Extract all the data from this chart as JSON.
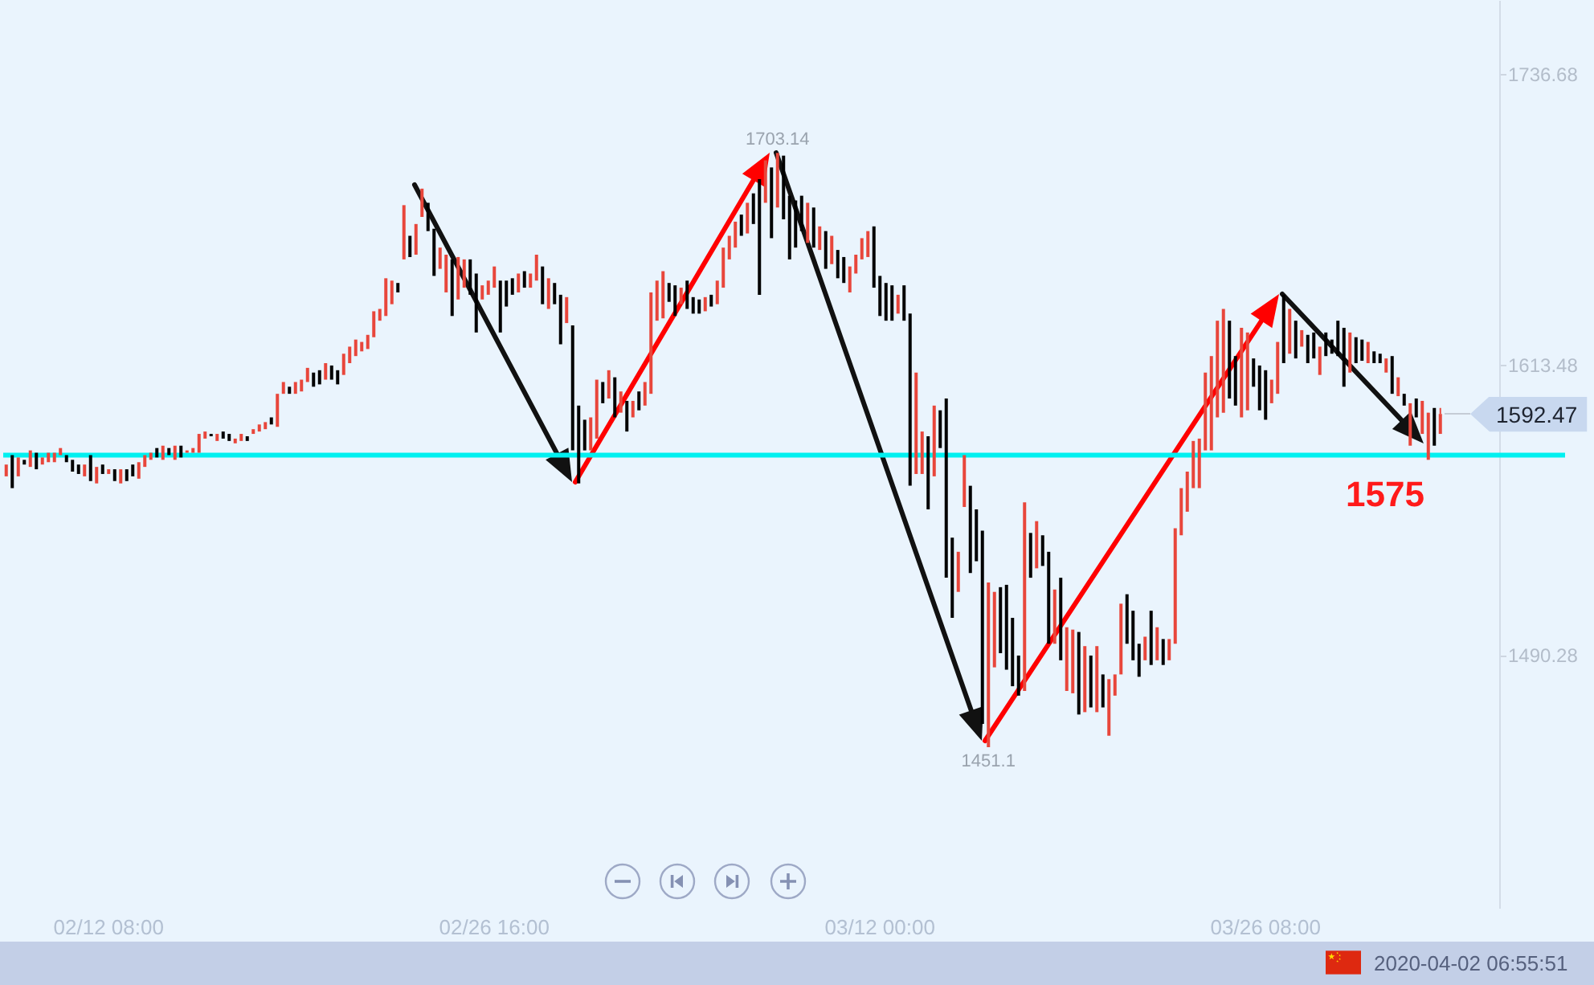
{
  "chart_data": {
    "type": "candlestick",
    "categories": [
      null,
      null,
      null,
      null,
      null,
      null,
      null,
      null,
      null,
      null,
      null,
      null,
      null,
      null,
      null,
      null,
      null,
      "02/12 08:00",
      null,
      null,
      null,
      null,
      null,
      null,
      null,
      null,
      null,
      null,
      null,
      null,
      null,
      null,
      null,
      null,
      null,
      null,
      null,
      null,
      null,
      null,
      null,
      null,
      null,
      null,
      null,
      null,
      null,
      null,
      null,
      null,
      null,
      null,
      null,
      null,
      null,
      null,
      null,
      null,
      null,
      null,
      null,
      null,
      null,
      null,
      null,
      null,
      null,
      null,
      null,
      null,
      null,
      null,
      null,
      null,
      null,
      null,
      null,
      null,
      null,
      null,
      null,
      "02/26 16:00",
      null,
      null,
      null,
      null,
      null,
      null,
      null,
      null,
      null,
      null,
      null,
      null,
      null,
      null,
      null,
      null,
      null,
      null,
      null,
      null,
      null,
      null,
      null,
      null,
      null,
      null,
      null,
      null,
      null,
      null,
      null,
      null,
      null,
      null,
      null,
      null,
      null,
      null,
      null,
      null,
      null,
      null,
      null,
      null,
      null,
      null,
      null,
      null,
      null,
      null,
      null,
      null,
      null,
      null,
      null,
      null,
      null,
      null,
      null,
      null,
      null,
      null,
      null,
      "03/12 00:00",
      null,
      null,
      null,
      null,
      null,
      null,
      null,
      null,
      null,
      null,
      null,
      null,
      null,
      null,
      null,
      null,
      null,
      null,
      null,
      null,
      null,
      null,
      null,
      null,
      null,
      null,
      null,
      null,
      null,
      null,
      null,
      null,
      null,
      null,
      null,
      null,
      null,
      null,
      null,
      null,
      null,
      null,
      null,
      null,
      null,
      null,
      null,
      null,
      null,
      null,
      null,
      null,
      null,
      null,
      null,
      null,
      null,
      null,
      null,
      null,
      null,
      null,
      null,
      "03/26 08:00",
      null,
      null,
      null,
      null,
      null,
      null,
      null,
      null,
      null,
      null,
      null,
      null,
      null,
      null,
      null,
      null,
      null,
      null,
      null,
      null,
      null,
      null,
      null,
      null,
      null,
      null,
      null,
      null,
      null
    ],
    "ohlc": [
      [
        1566,
        1571,
        1566,
        1571
      ],
      [
        1575,
        1575,
        1561,
        1561
      ],
      [
        1566,
        1574,
        1566,
        1574
      ],
      [
        1573,
        1573,
        1571,
        1571
      ],
      [
        1570,
        1577,
        1570,
        1577
      ],
      [
        1576,
        1576,
        1569,
        1569
      ],
      [
        1571,
        1574,
        1571,
        1574
      ],
      [
        1572,
        1576,
        1572,
        1576
      ],
      [
        1572,
        1576,
        1572,
        1576
      ],
      [
        1575,
        1578,
        1575,
        1578
      ],
      [
        1575,
        1575,
        1572,
        1572
      ],
      [
        1573,
        1573,
        1568,
        1568
      ],
      [
        1571,
        1571,
        1567,
        1567
      ],
      [
        1566,
        1571,
        1566,
        1571
      ],
      [
        1575,
        1575,
        1564,
        1564
      ],
      [
        1563,
        1570,
        1563,
        1570
      ],
      [
        1571,
        1571,
        1567,
        1567
      ],
      [
        1567,
        1569,
        1567,
        1569
      ],
      [
        1569,
        1569,
        1564,
        1564
      ],
      [
        1563,
        1569,
        1563,
        1569
      ],
      [
        1569,
        1569,
        1564,
        1564
      ],
      [
        1571,
        1571,
        1566,
        1566
      ],
      [
        1565,
        1572,
        1565,
        1572
      ],
      [
        1570,
        1575,
        1570,
        1575
      ],
      [
        1573,
        1576,
        1573,
        1576
      ],
      [
        1578,
        1578,
        1574,
        1574
      ],
      [
        1573,
        1579,
        1573,
        1579
      ],
      [
        1578,
        1578,
        1575,
        1575
      ],
      [
        1573,
        1579,
        1573,
        1579
      ],
      [
        1579,
        1579,
        1574,
        1574
      ],
      [
        1576,
        1577,
        1576,
        1577
      ],
      [
        1576,
        1578,
        1576,
        1578
      ],
      [
        1576,
        1584,
        1576,
        1584
      ],
      [
        1582,
        1585,
        1582,
        1585
      ],
      [
        1584,
        1584,
        1583,
        1583
      ],
      [
        1581,
        1584,
        1581,
        1584
      ],
      [
        1585,
        1585,
        1582,
        1582
      ],
      [
        1584,
        1584,
        1581,
        1581
      ],
      [
        1580,
        1582,
        1580,
        1582
      ],
      [
        1581,
        1584,
        1581,
        1584
      ],
      [
        1583,
        1583,
        1581,
        1581
      ],
      [
        1584,
        1586,
        1584,
        1586
      ],
      [
        1585,
        1588,
        1585,
        1588
      ],
      [
        1586,
        1589,
        1586,
        1589
      ],
      [
        1591,
        1591,
        1588,
        1588
      ],
      [
        1587,
        1601,
        1587,
        1601
      ],
      [
        1601,
        1606,
        1601,
        1606
      ],
      [
        1604,
        1604,
        1601,
        1601
      ],
      [
        1601,
        1606,
        1601,
        1606
      ],
      [
        1602,
        1607,
        1602,
        1607
      ],
      [
        1606,
        1612,
        1606,
        1612
      ],
      [
        1610,
        1610,
        1604,
        1604
      ],
      [
        1611,
        1611,
        1605,
        1605
      ],
      [
        1607,
        1614,
        1607,
        1614
      ],
      [
        1613,
        1613,
        1607,
        1607
      ],
      [
        1611,
        1611,
        1605,
        1605
      ],
      [
        1609,
        1618,
        1609,
        1618
      ],
      [
        1614,
        1621,
        1614,
        1621
      ],
      [
        1617,
        1624,
        1617,
        1624
      ],
      [
        1619,
        1623,
        1619,
        1623
      ],
      [
        1620,
        1626,
        1620,
        1626
      ],
      [
        1625,
        1636,
        1625,
        1636
      ],
      [
        1632,
        1637,
        1632,
        1637
      ],
      [
        1634,
        1650,
        1634,
        1650
      ],
      [
        1639,
        1649,
        1639,
        1649
      ],
      [
        1648,
        1648,
        1644,
        1644
      ],
      [
        1658,
        1681,
        1658,
        1681
      ],
      [
        1668,
        1668,
        1659,
        1659
      ],
      [
        1660,
        1673,
        1660,
        1673
      ],
      [
        1676,
        1688,
        1676,
        1688
      ],
      [
        1682,
        1682,
        1670,
        1670
      ],
      [
        1671,
        1671,
        1651,
        1651
      ],
      [
        1654,
        1663,
        1654,
        1663
      ],
      [
        1644,
        1660,
        1644,
        1660
      ],
      [
        1658,
        1658,
        1634,
        1634
      ],
      [
        1641,
        1659,
        1641,
        1659
      ],
      [
        1646,
        1658,
        1646,
        1658
      ],
      [
        1658,
        1658,
        1643,
        1643
      ],
      [
        1652,
        1652,
        1627,
        1627
      ],
      [
        1641,
        1647,
        1641,
        1647
      ],
      [
        1643,
        1649,
        1643,
        1649
      ],
      [
        1646,
        1655,
        1646,
        1655
      ],
      [
        1649,
        1649,
        1627,
        1627
      ],
      [
        1649,
        1649,
        1638,
        1638
      ],
      [
        1650,
        1650,
        1643,
        1643
      ],
      [
        1644,
        1652,
        1644,
        1652
      ],
      [
        1653,
        1653,
        1646,
        1646
      ],
      [
        1646,
        1652,
        1646,
        1652
      ],
      [
        1649,
        1660,
        1649,
        1660
      ],
      [
        1655,
        1655,
        1639,
        1639
      ],
      [
        1637,
        1650,
        1637,
        1650
      ],
      [
        1648,
        1648,
        1639,
        1639
      ],
      [
        1643,
        1643,
        1622,
        1622
      ],
      [
        1631,
        1642,
        1631,
        1642
      ],
      [
        1630,
        1630,
        1577,
        1577
      ],
      [
        1596,
        1596,
        1563,
        1563
      ],
      [
        1590,
        1590,
        1577,
        1577
      ],
      [
        1577,
        1591,
        1577,
        1591
      ],
      [
        1582,
        1607,
        1582,
        1607
      ],
      [
        1606,
        1606,
        1597,
        1597
      ],
      [
        1599,
        1611,
        1599,
        1611
      ],
      [
        1608,
        1608,
        1591,
        1591
      ],
      [
        1593,
        1602,
        1593,
        1602
      ],
      [
        1598,
        1598,
        1585,
        1585
      ],
      [
        1591,
        1598,
        1591,
        1598
      ],
      [
        1602,
        1602,
        1594,
        1594
      ],
      [
        1596,
        1606,
        1596,
        1606
      ],
      [
        1601,
        1644,
        1601,
        1644
      ],
      [
        1632,
        1649,
        1632,
        1649
      ],
      [
        1633,
        1653,
        1633,
        1653
      ],
      [
        1648,
        1648,
        1640,
        1640
      ],
      [
        1647,
        1647,
        1634,
        1634
      ],
      [
        1639,
        1646,
        1639,
        1646
      ],
      [
        1649,
        1649,
        1637,
        1637
      ],
      [
        1642,
        1642,
        1635,
        1635
      ],
      [
        1641,
        1641,
        1635,
        1635
      ],
      [
        1636,
        1642,
        1636,
        1642
      ],
      [
        1643,
        1643,
        1638,
        1638
      ],
      [
        1639,
        1649,
        1639,
        1649
      ],
      [
        1646,
        1663,
        1646,
        1663
      ],
      [
        1658,
        1668,
        1658,
        1668
      ],
      [
        1663,
        1674,
        1663,
        1674
      ],
      [
        1677,
        1677,
        1668,
        1668
      ],
      [
        1669,
        1682,
        1669,
        1682
      ],
      [
        1686,
        1686,
        1673,
        1673
      ],
      [
        1692,
        1692,
        1643,
        1643
      ],
      [
        1682,
        1700,
        1682,
        1700
      ],
      [
        1697,
        1697,
        1667,
        1667
      ],
      [
        1680,
        1703.14,
        1680,
        1703.14
      ],
      [
        1702,
        1702,
        1675,
        1675
      ],
      [
        1685,
        1685,
        1658,
        1658
      ],
      [
        1683,
        1683,
        1663,
        1663
      ],
      [
        1685,
        1685,
        1670,
        1670
      ],
      [
        1665,
        1682,
        1665,
        1682
      ],
      [
        1680,
        1680,
        1663,
        1663
      ],
      [
        1662,
        1672,
        1662,
        1672
      ],
      [
        1670,
        1670,
        1654,
        1654
      ],
      [
        1656,
        1668,
        1656,
        1668
      ],
      [
        1662,
        1662,
        1650,
        1650
      ],
      [
        1659,
        1659,
        1648,
        1648
      ],
      [
        1644,
        1655,
        1644,
        1655
      ],
      [
        1652,
        1660,
        1652,
        1660
      ],
      [
        1658,
        1667,
        1658,
        1667
      ],
      [
        1659,
        1670,
        1659,
        1670
      ],
      [
        1672,
        1672,
        1646,
        1646
      ],
      [
        1651,
        1651,
        1634,
        1634
      ],
      [
        1648,
        1648,
        1632,
        1632
      ],
      [
        1647,
        1647,
        1632,
        1632
      ],
      [
        1635,
        1643,
        1635,
        1643
      ],
      [
        1647,
        1647,
        1632,
        1632
      ],
      [
        1635,
        1635,
        1562,
        1562
      ],
      [
        1567,
        1610,
        1567,
        1610
      ],
      [
        1567,
        1585,
        1567,
        1585
      ],
      [
        1583,
        1583,
        1552,
        1552
      ],
      [
        1566,
        1596,
        1566,
        1596
      ],
      [
        1594,
        1594,
        1578,
        1578
      ],
      [
        1599,
        1599,
        1523,
        1523
      ],
      [
        1540,
        1540,
        1506,
        1506
      ],
      [
        1517,
        1534,
        1517,
        1534
      ],
      [
        1553,
        1575,
        1553,
        1575
      ],
      [
        1562,
        1562,
        1525,
        1525
      ],
      [
        1552,
        1552,
        1530,
        1530
      ],
      [
        1543,
        1543,
        1461,
        1461
      ],
      [
        1451.1,
        1521,
        1451.1,
        1521
      ],
      [
        1485,
        1517,
        1485,
        1517
      ],
      [
        1519,
        1519,
        1491,
        1491
      ],
      [
        1520,
        1520,
        1484,
        1484
      ],
      [
        1506,
        1506,
        1477,
        1477
      ],
      [
        1490,
        1490,
        1473,
        1473
      ],
      [
        1475,
        1555,
        1475,
        1555
      ],
      [
        1542,
        1542,
        1523,
        1523
      ],
      [
        1527,
        1547,
        1527,
        1547
      ],
      [
        1541,
        1541,
        1528,
        1528
      ],
      [
        1534,
        1534,
        1495,
        1495
      ],
      [
        1495,
        1518,
        1495,
        1518
      ],
      [
        1523,
        1523,
        1488,
        1488
      ],
      [
        1475,
        1502,
        1475,
        1502
      ],
      [
        1474,
        1501,
        1474,
        1501
      ],
      [
        1500,
        1500,
        1465,
        1465
      ],
      [
        1466,
        1494,
        1466,
        1494
      ],
      [
        1490,
        1490,
        1468,
        1468
      ],
      [
        1466,
        1494,
        1466,
        1494
      ],
      [
        1482,
        1482,
        1468,
        1468
      ],
      [
        1456,
        1480,
        1456,
        1480
      ],
      [
        1473,
        1482,
        1473,
        1482
      ],
      [
        1482,
        1512,
        1482,
        1512
      ],
      [
        1516,
        1516,
        1495,
        1495
      ],
      [
        1509,
        1509,
        1488,
        1488
      ],
      [
        1495,
        1495,
        1481,
        1481
      ],
      [
        1488,
        1498,
        1488,
        1498
      ],
      [
        1509,
        1509,
        1486,
        1486
      ],
      [
        1488,
        1502,
        1488,
        1502
      ],
      [
        1497,
        1497,
        1486,
        1486
      ],
      [
        1488,
        1497,
        1488,
        1497
      ],
      [
        1495,
        1544,
        1495,
        1544
      ],
      [
        1541,
        1561,
        1541,
        1561
      ],
      [
        1551,
        1568,
        1551,
        1568
      ],
      [
        1561,
        1581,
        1561,
        1581
      ],
      [
        1561,
        1582,
        1561,
        1582
      ],
      [
        1577,
        1610,
        1577,
        1610
      ],
      [
        1577,
        1617,
        1577,
        1617
      ],
      [
        1591,
        1632,
        1591,
        1632
      ],
      [
        1593,
        1637,
        1593,
        1637
      ],
      [
        1632,
        1632,
        1599,
        1599
      ],
      [
        1617,
        1617,
        1596,
        1596
      ],
      [
        1591,
        1629,
        1591,
        1629
      ],
      [
        1594,
        1627,
        1594,
        1627
      ],
      [
        1616,
        1616,
        1604,
        1604
      ],
      [
        1613,
        1613,
        1594,
        1594
      ],
      [
        1611,
        1611,
        1590,
        1590
      ],
      [
        1597,
        1607,
        1597,
        1607
      ],
      [
        1601,
        1623,
        1601,
        1623
      ],
      [
        1643,
        1643,
        1614,
        1614
      ],
      [
        1618,
        1637,
        1618,
        1637
      ],
      [
        1632,
        1632,
        1616,
        1616
      ],
      [
        1621,
        1628,
        1621,
        1628
      ],
      [
        1626,
        1626,
        1614,
        1614
      ],
      [
        1627,
        1627,
        1616,
        1616
      ],
      [
        1609,
        1621,
        1609,
        1621
      ],
      [
        1627,
        1627,
        1617,
        1617
      ],
      [
        1624,
        1624,
        1618,
        1618
      ],
      [
        1632,
        1632,
        1617,
        1617
      ],
      [
        1629,
        1629,
        1604,
        1604
      ],
      [
        1610,
        1627,
        1610,
        1627
      ],
      [
        1625,
        1625,
        1614,
        1614
      ],
      [
        1624,
        1624,
        1615,
        1615
      ],
      [
        1614,
        1623,
        1614,
        1623
      ],
      [
        1619,
        1619,
        1614,
        1614
      ],
      [
        1618,
        1618,
        1614,
        1614
      ],
      [
        1610,
        1616,
        1610,
        1616
      ],
      [
        1617,
        1617,
        1601,
        1601
      ],
      [
        1600,
        1608,
        1600,
        1608
      ],
      [
        1601,
        1601,
        1596,
        1596
      ],
      [
        1579,
        1597,
        1579,
        1597
      ],
      [
        1599,
        1599,
        1591,
        1591
      ],
      [
        1584,
        1598,
        1584,
        1598
      ],
      [
        1573,
        1593,
        1573,
        1593
      ],
      [
        1595,
        1595,
        1579,
        1579
      ],
      [
        1584,
        1595,
        1584,
        1592.47
      ]
    ],
    "colors": [
      "#e8463b",
      "#000000",
      "#e8463b",
      "#000000",
      "#e8463b",
      "#000000",
      "#e8463b",
      "#e8463b",
      "#e8463b",
      "#e8463b",
      "#000000",
      "#000000",
      "#000000",
      "#e8463b",
      "#000000",
      "#e8463b",
      "#000000",
      "#e8463b",
      "#000000",
      "#e8463b",
      "#000000",
      "#000000",
      "#e8463b",
      "#e8463b",
      "#e8463b",
      "#000000",
      "#e8463b",
      "#000000",
      "#e8463b",
      "#000000",
      "#e8463b",
      "#e8463b",
      "#e8463b",
      "#e8463b",
      "#000000",
      "#e8463b",
      "#000000",
      "#000000",
      "#e8463b",
      "#e8463b",
      "#000000",
      "#e8463b",
      "#e8463b",
      "#e8463b",
      "#000000",
      "#e8463b",
      "#e8463b",
      "#000000",
      "#e8463b",
      "#e8463b",
      "#e8463b",
      "#000000",
      "#000000",
      "#e8463b",
      "#000000",
      "#000000",
      "#e8463b",
      "#e8463b",
      "#e8463b",
      "#e8463b",
      "#e8463b",
      "#e8463b",
      "#e8463b",
      "#e8463b",
      "#e8463b",
      "#000000",
      "#e8463b",
      "#000000",
      "#e8463b",
      "#e8463b",
      "#000000",
      "#000000",
      "#e8463b",
      "#e8463b",
      "#000000",
      "#e8463b",
      "#e8463b",
      "#000000",
      "#000000",
      "#e8463b",
      "#e8463b",
      "#e8463b",
      "#000000",
      "#000000",
      "#000000",
      "#e8463b",
      "#000000",
      "#e8463b",
      "#e8463b",
      "#000000",
      "#e8463b",
      "#000000",
      "#000000",
      "#e8463b",
      "#000000",
      "#000000",
      "#000000",
      "#e8463b",
      "#e8463b",
      "#000000",
      "#e8463b",
      "#000000",
      "#e8463b",
      "#000000",
      "#e8463b",
      "#000000",
      "#e8463b",
      "#e8463b",
      "#e8463b",
      "#e8463b",
      "#000000",
      "#000000",
      "#e8463b",
      "#000000",
      "#000000",
      "#000000",
      "#e8463b",
      "#000000",
      "#e8463b",
      "#e8463b",
      "#e8463b",
      "#e8463b",
      "#000000",
      "#e8463b",
      "#000000",
      "#000000",
      "#e8463b",
      "#000000",
      "#e8463b",
      "#000000",
      "#000000",
      "#000000",
      "#000000",
      "#e8463b",
      "#000000",
      "#e8463b",
      "#000000",
      "#e8463b",
      "#000000",
      "#000000",
      "#e8463b",
      "#e8463b",
      "#e8463b",
      "#e8463b",
      "#000000",
      "#000000",
      "#000000",
      "#000000",
      "#e8463b",
      "#000000",
      "#000000",
      "#e8463b",
      "#e8463b",
      "#000000",
      "#e8463b",
      "#000000",
      "#000000",
      "#000000",
      "#e8463b",
      "#e8463b",
      "#000000",
      "#000000",
      "#000000",
      "#e8463b",
      "#e8463b",
      "#000000",
      "#000000",
      "#000000",
      "#000000",
      "#e8463b",
      "#000000",
      "#e8463b",
      "#000000",
      "#000000",
      "#e8463b",
      "#000000",
      "#e8463b",
      "#e8463b",
      "#000000",
      "#e8463b",
      "#000000",
      "#e8463b",
      "#000000",
      "#e8463b",
      "#e8463b",
      "#e8463b",
      "#000000",
      "#000000",
      "#000000",
      "#e8463b",
      "#000000",
      "#e8463b",
      "#000000",
      "#e8463b",
      "#e8463b",
      "#e8463b",
      "#e8463b",
      "#e8463b",
      "#e8463b",
      "#e8463b",
      "#e8463b",
      "#e8463b",
      "#e8463b",
      "#000000",
      "#000000",
      "#e8463b",
      "#e8463b",
      "#000000",
      "#000000",
      "#000000",
      "#e8463b",
      "#e8463b",
      "#000000",
      "#e8463b",
      "#000000",
      "#e8463b",
      "#000000",
      "#000000",
      "#e8463b",
      "#000000",
      "#000000",
      "#000000",
      "#000000",
      "#e8463b",
      "#000000",
      "#000000",
      "#e8463b",
      "#000000",
      "#000000",
      "#e8463b",
      "#000000",
      "#e8463b",
      "#000000",
      "#e8463b",
      "#000000",
      "#e8463b",
      "#e8463b",
      "#000000",
      "#e8463b"
    ],
    "ylim": [
      1383,
      1768
    ],
    "yticks": [
      1736.68,
      1613.48,
      1490.28
    ],
    "ref_lines": [
      {
        "axis": "y",
        "value": 1575,
        "label": "1575",
        "color": "#00f0f0"
      }
    ],
    "annotations": [
      {
        "text": "1703.14",
        "y": 1703.14
      },
      {
        "text": "1451.1",
        "y": 1451.1
      },
      "1592.47",
      "2020-04-02 06:55:51"
    ]
  }
}
